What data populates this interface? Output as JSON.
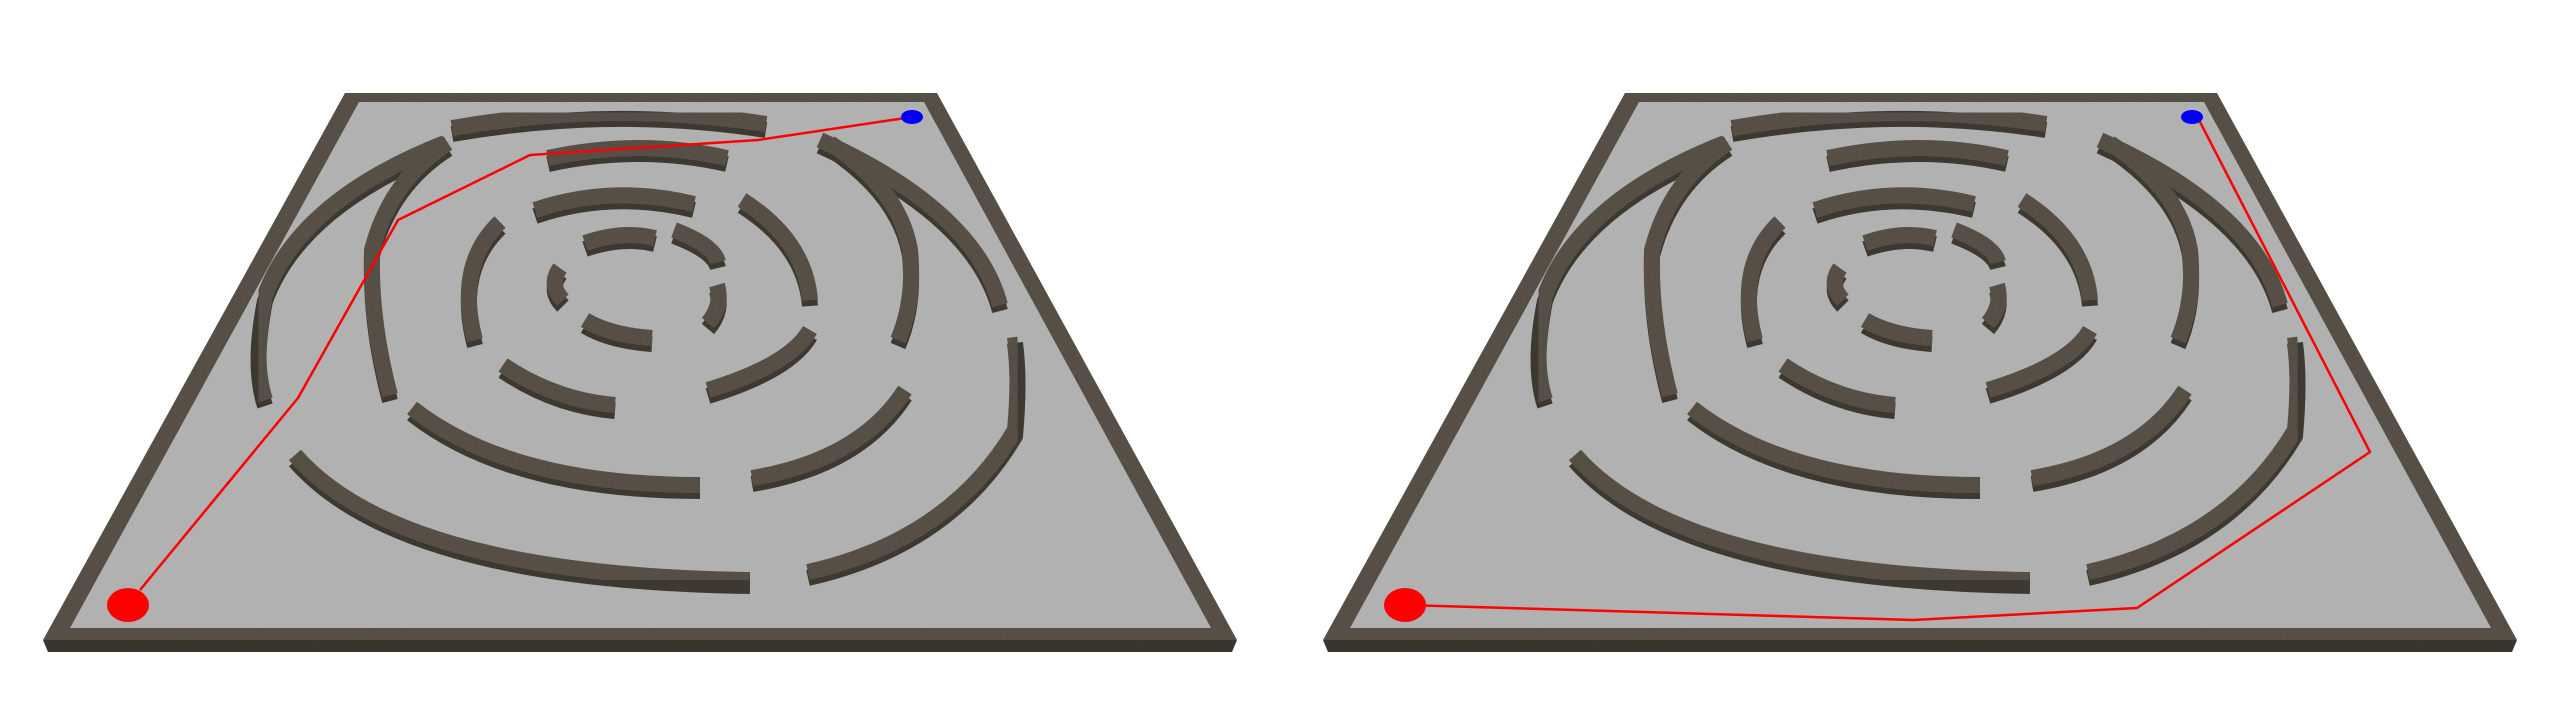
{
  "colors": {
    "background": "#ffffff",
    "floor": "#b1b1b1",
    "wall_top": "#5c554b",
    "wall_side": "#3d3931",
    "path": "#ff0000",
    "start_marker": "#ff0000",
    "goal_marker": "#0000ff"
  },
  "panels": [
    {
      "name": "maze-panel-left",
      "path_label": "path-direct-through-rings"
    },
    {
      "name": "maze-panel-right",
      "path_label": "path-around-outside"
    }
  ]
}
